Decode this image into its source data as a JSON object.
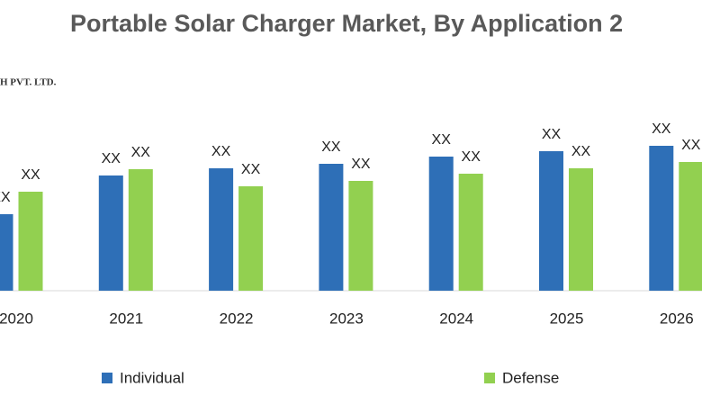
{
  "chart_data": {
    "type": "bar",
    "title": "Portable Solar Charger Market, By Application 2",
    "logo_text": "H PVT. LTD.",
    "categories": [
      "2020",
      "2021",
      "2022",
      "2023",
      "2024",
      "2025",
      "2026"
    ],
    "series": [
      {
        "name": "Individual",
        "color": "#2e6fb7",
        "values": [
          85,
          128,
          136,
          141,
          149,
          155,
          161
        ],
        "value_labels": [
          "XX",
          "XX",
          "XX",
          "XX",
          "XX",
          "XX",
          "XX"
        ]
      },
      {
        "name": "Defense",
        "color": "#92d050",
        "values": [
          110,
          135,
          116,
          122,
          130,
          136,
          143
        ],
        "value_labels": [
          "XX",
          "XX",
          "XX",
          "XX",
          "XX",
          "XX",
          "XX"
        ]
      }
    ]
  }
}
